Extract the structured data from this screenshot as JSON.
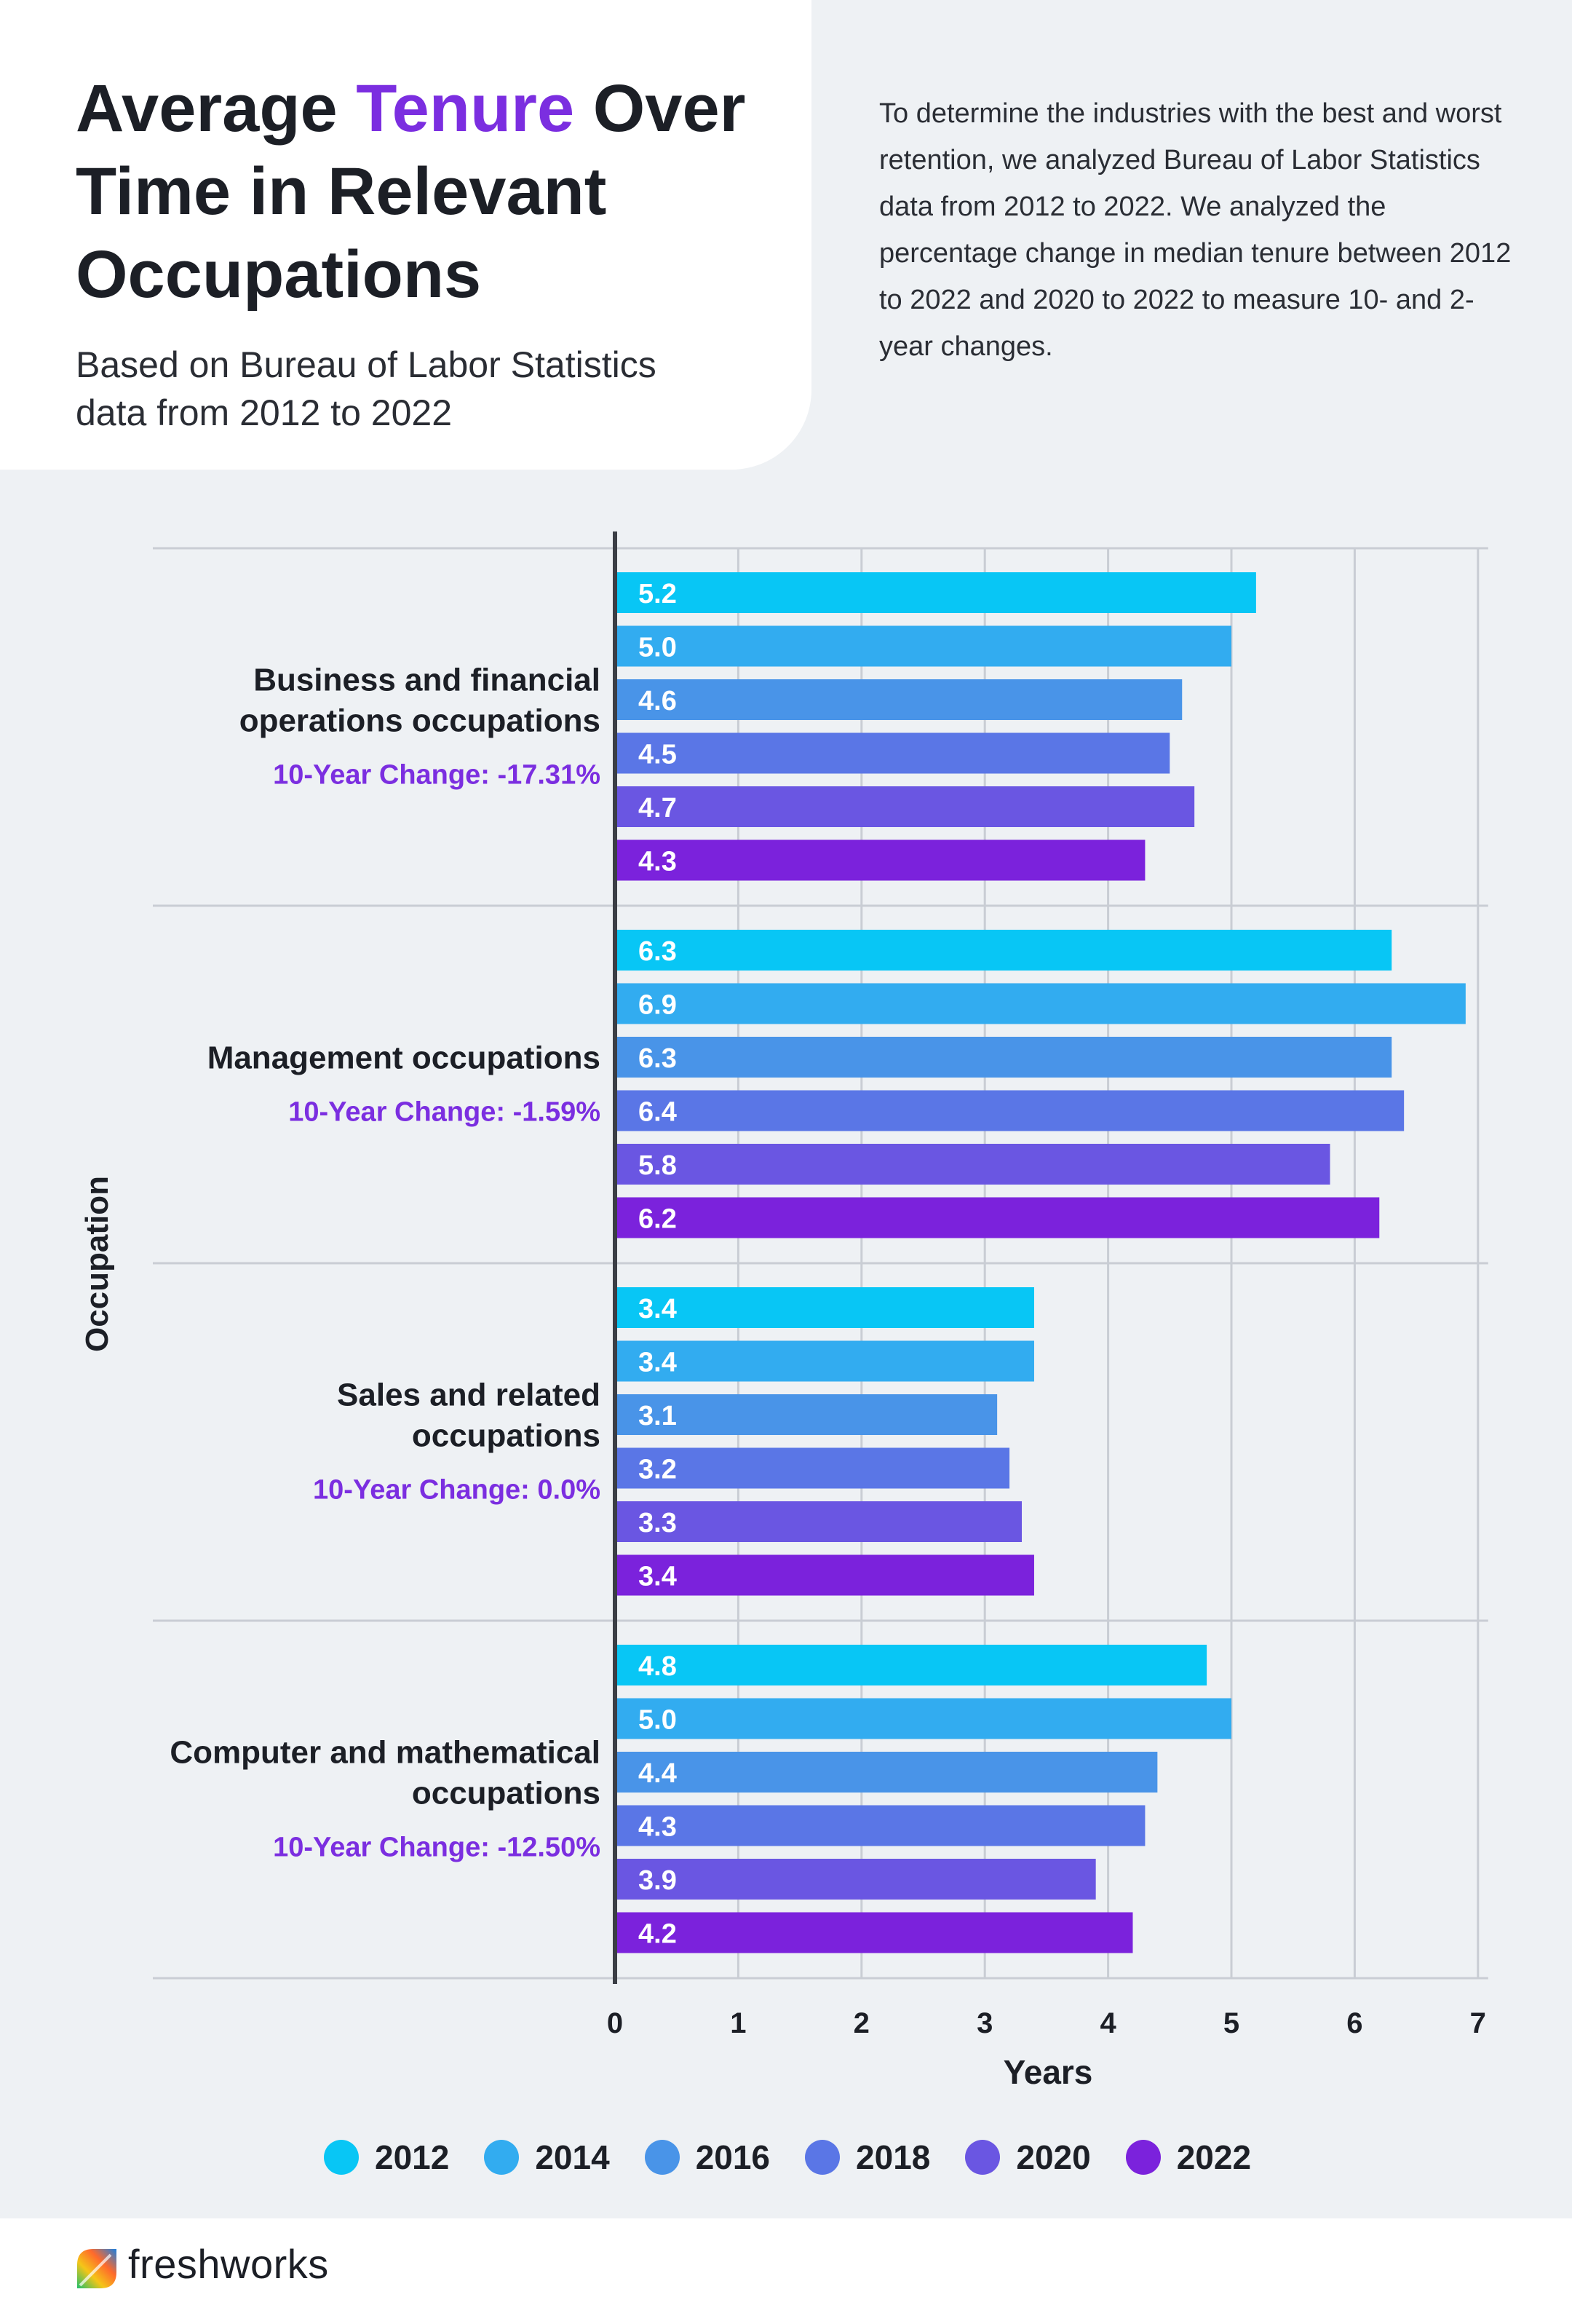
{
  "header": {
    "title_part1": "Average ",
    "title_highlight": "Tenure",
    "title_part2": " Over Time in Relevant Occupations",
    "subtitle": "Based on Bureau of Labor Statistics data from 2012 to 2022",
    "intro": "To determine the industries with the best and worst retention, we analyzed Bureau of Labor Statistics data from 2012 to 2022. We analyzed the percentage change in median tenure between 2012 to 2022 and 2020 to 2022 to measure 10- and 2-year changes."
  },
  "chart_data": {
    "type": "bar",
    "orientation": "horizontal",
    "xlabel": "Years",
    "ylabel": "Occupation",
    "xlim": [
      0,
      7
    ],
    "xticks": [
      "0",
      "1",
      "2",
      "3",
      "4",
      "5",
      "6",
      "7"
    ],
    "grid": true,
    "legend_position": "bottom",
    "categories": [
      {
        "label_lines": [
          "Business and financial",
          "operations occupations"
        ],
        "change": "10-Year Change: -17.31%"
      },
      {
        "label_lines": [
          "Management occupations"
        ],
        "change": "10-Year Change: -1.59%"
      },
      {
        "label_lines": [
          "Sales and related",
          "occupations"
        ],
        "change": "10-Year Change: 0.0%"
      },
      {
        "label_lines": [
          "Computer and mathematical",
          "occupations"
        ],
        "change": "10-Year Change: -12.50%"
      }
    ],
    "series": [
      {
        "name": "2012",
        "color": "#08c6f5",
        "values": [
          5.2,
          6.3,
          3.4,
          4.8
        ]
      },
      {
        "name": "2014",
        "color": "#32acf0",
        "values": [
          5.0,
          6.9,
          3.4,
          5.0
        ]
      },
      {
        "name": "2016",
        "color": "#4994e8",
        "values": [
          4.6,
          6.3,
          3.1,
          4.4
        ]
      },
      {
        "name": "2018",
        "color": "#5a76e6",
        "values": [
          4.5,
          6.4,
          3.2,
          4.3
        ]
      },
      {
        "name": "2020",
        "color": "#6a56e2",
        "values": [
          4.7,
          5.8,
          3.3,
          3.9
        ]
      },
      {
        "name": "2022",
        "color": "#7b22dc",
        "values": [
          4.3,
          6.2,
          3.4,
          4.2
        ]
      }
    ]
  },
  "colors": {
    "accent": "#7b2ee0",
    "change_text": "#7b2ee0"
  },
  "footer": {
    "brand": "freshworks",
    "logo_icon": "freshworks-logo-icon"
  }
}
